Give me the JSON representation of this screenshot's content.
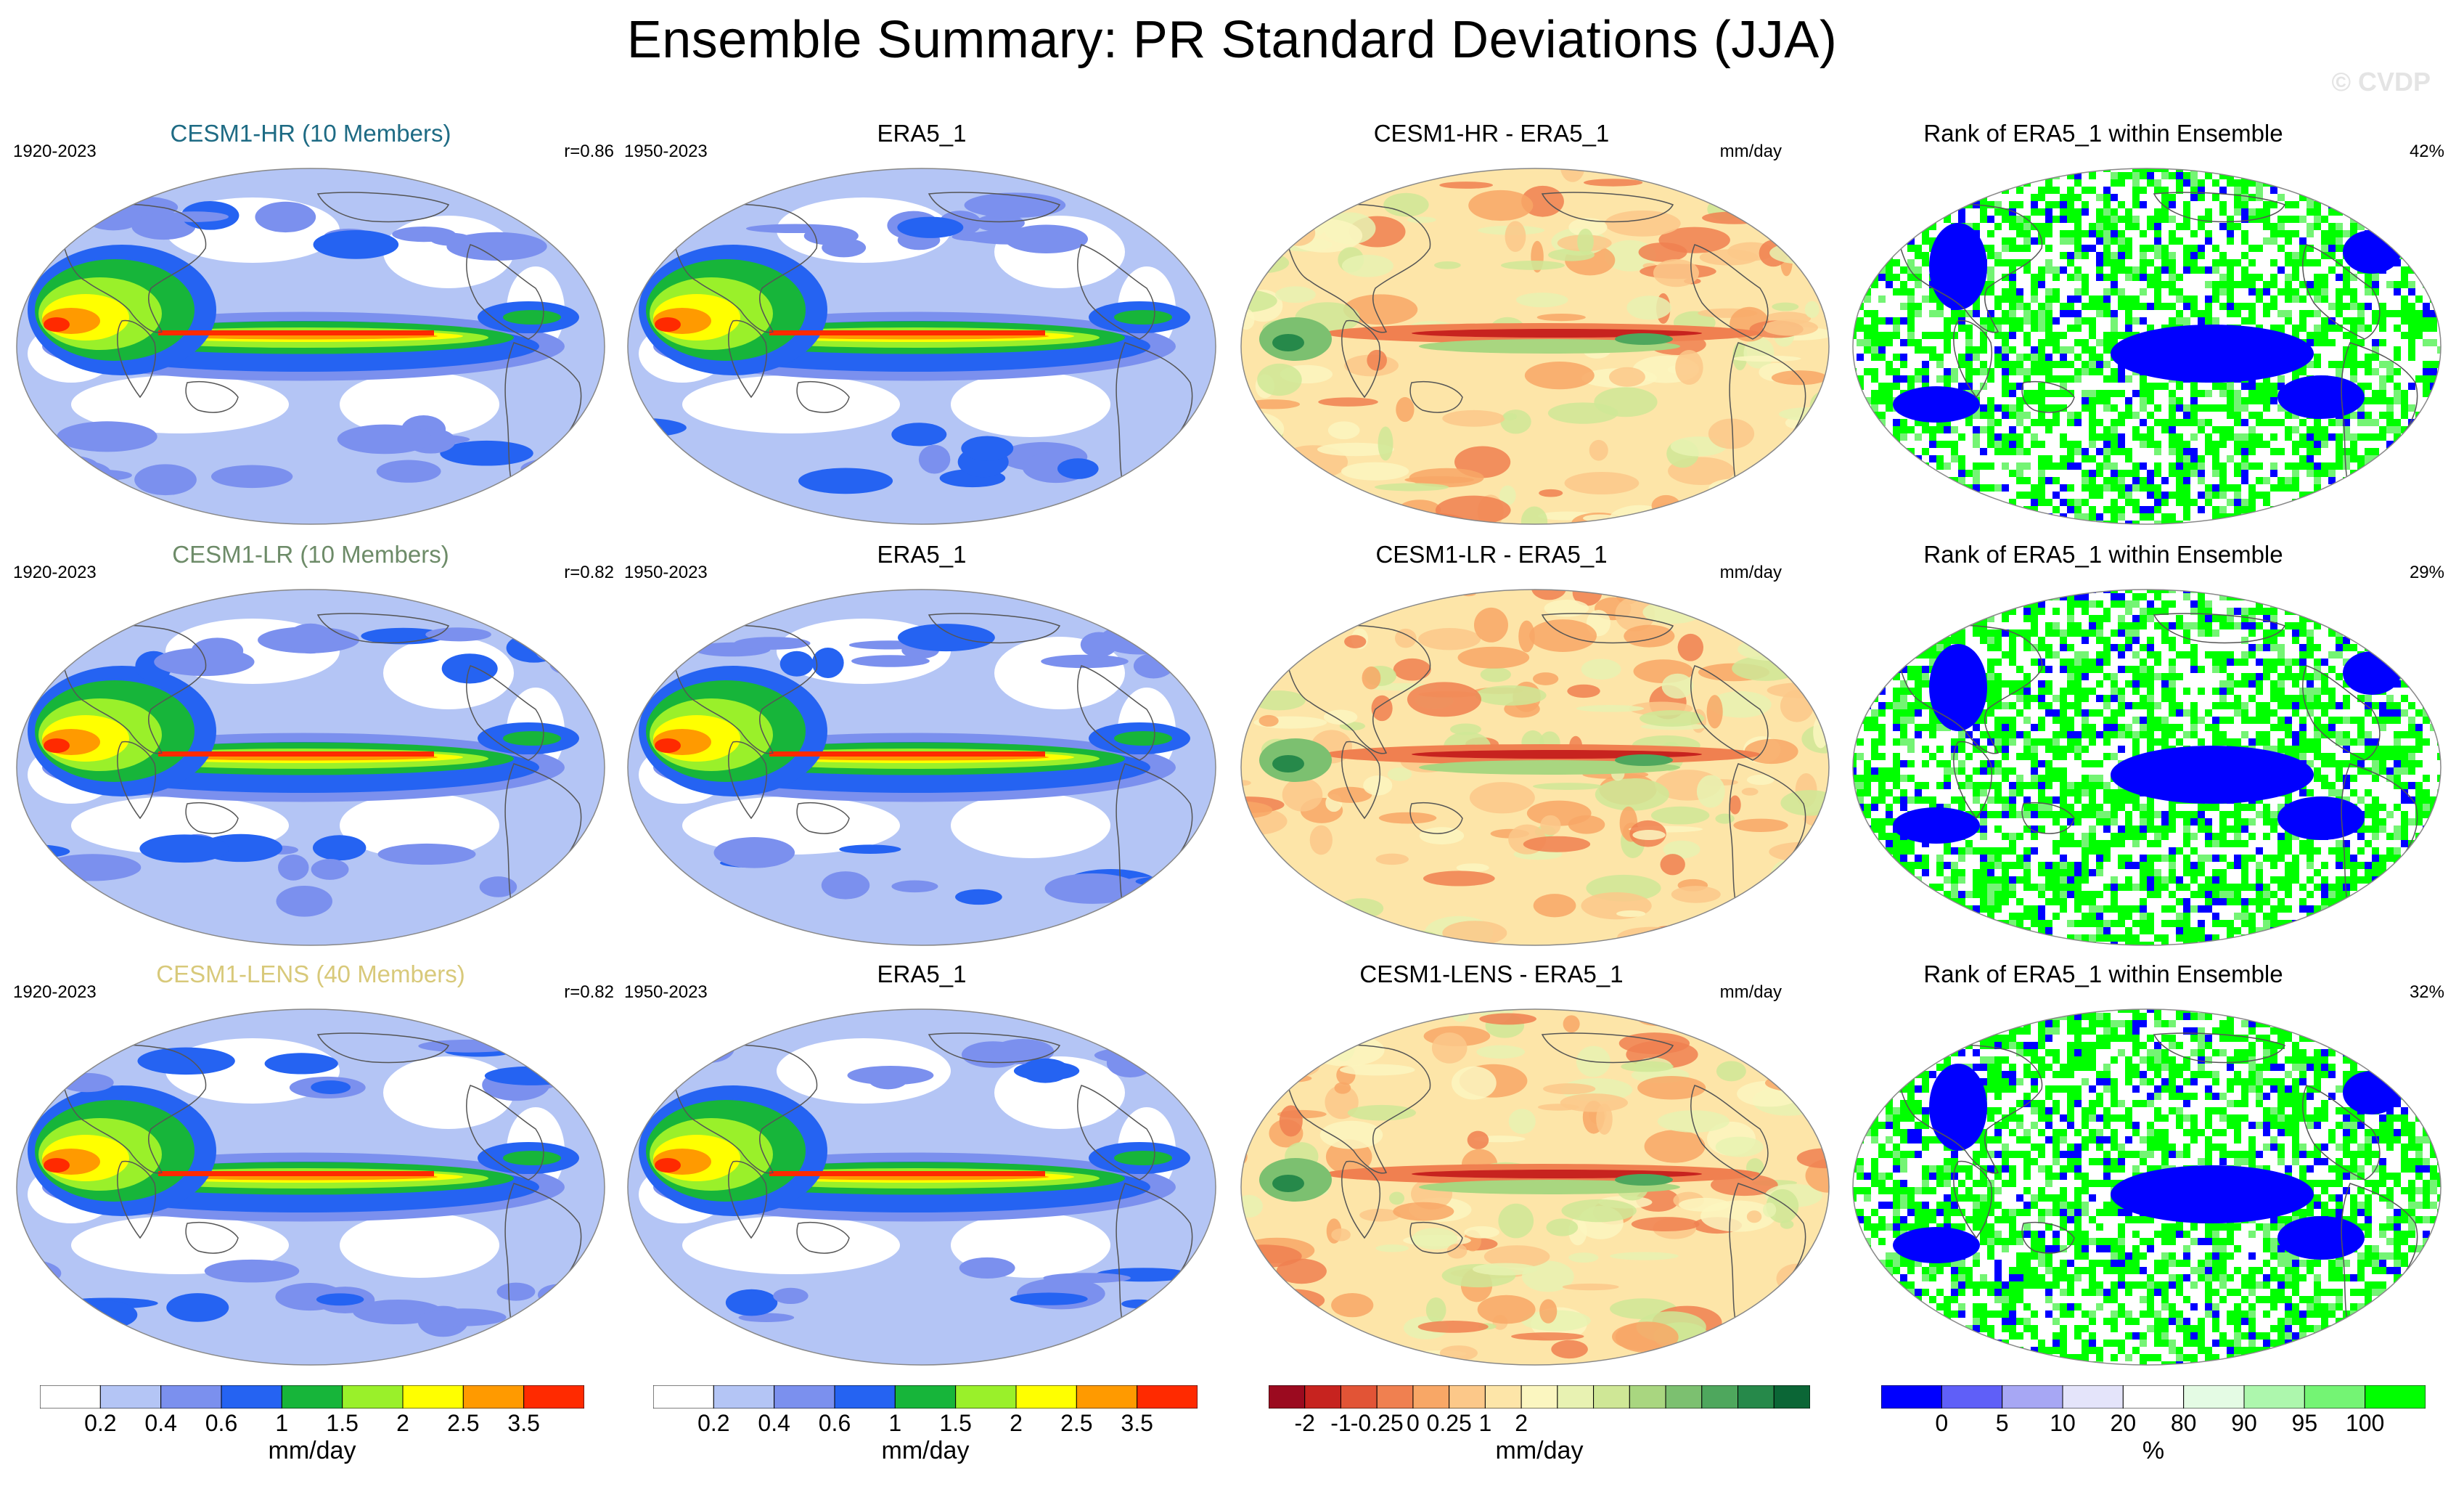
{
  "title": "Ensemble Summary: PR Standard Deviations (JJA)",
  "watermark": "© CVDP",
  "rows": [
    {
      "model": {
        "title": "CESM1-HR (10 Members)",
        "title_color": "#1e6b84",
        "period": "1920-2023",
        "corr": "r=0.86"
      },
      "obs": {
        "title": "ERA5_1",
        "period": "1950-2023"
      },
      "diff": {
        "title": "CESM1-HR - ERA5_1",
        "units": "mm/day"
      },
      "rank": {
        "title": "Rank of ERA5_1 within Ensemble",
        "pct": "42%"
      }
    },
    {
      "model": {
        "title": "CESM1-LR (10 Members)",
        "title_color": "#6d8b68",
        "period": "1920-2023",
        "corr": "r=0.82"
      },
      "obs": {
        "title": "ERA5_1",
        "period": "1950-2023"
      },
      "diff": {
        "title": "CESM1-LR - ERA5_1",
        "units": "mm/day"
      },
      "rank": {
        "title": "Rank of ERA5_1 within Ensemble",
        "pct": "29%"
      }
    },
    {
      "model": {
        "title": "CESM1-LENS (40 Members)",
        "title_color": "#d8c97a",
        "period": "1920-2023",
        "corr": "r=0.82"
      },
      "obs": {
        "title": "ERA5_1",
        "period": "1950-2023"
      },
      "diff": {
        "title": "CESM1-LENS - ERA5_1",
        "units": "mm/day"
      },
      "rank": {
        "title": "Rank of ERA5_1 within Ensemble",
        "pct": "32%"
      }
    }
  ],
  "colorbars": {
    "stddev": {
      "colors": [
        "#ffffff",
        "#b4c5f5",
        "#7b90ee",
        "#2563f2",
        "#17b53a",
        "#9af02a",
        "#ffff00",
        "#ff9a00",
        "#ff2a00"
      ],
      "labels": [
        "0.2",
        "0.4",
        "0.6",
        "1",
        "1.5",
        "2",
        "2.5",
        "3.5"
      ],
      "units": "mm/day"
    },
    "diff": {
      "colors": [
        "#9b0a1f",
        "#c7231f",
        "#e25436",
        "#f08050",
        "#f8a766",
        "#fcc889",
        "#fde5a8",
        "#fbf6c0",
        "#e8f2b2",
        "#cfe796",
        "#a9d680",
        "#7cc070",
        "#4ea75d",
        "#26894a",
        "#0b6636"
      ],
      "labels": [
        "-2",
        "-1",
        "-0.25",
        "0",
        "0.25",
        "1",
        "2"
      ],
      "units": "mm/day"
    },
    "rank": {
      "colors": [
        "#0000ff",
        "#5f5ff8",
        "#a7a7f4",
        "#e4e4fa",
        "#ffffff",
        "#e4fbe4",
        "#adf7ad",
        "#74f474",
        "#00ff00"
      ],
      "labels": [
        "0",
        "5",
        "10",
        "20",
        "80",
        "90",
        "95",
        "100"
      ],
      "units": "%"
    }
  }
}
